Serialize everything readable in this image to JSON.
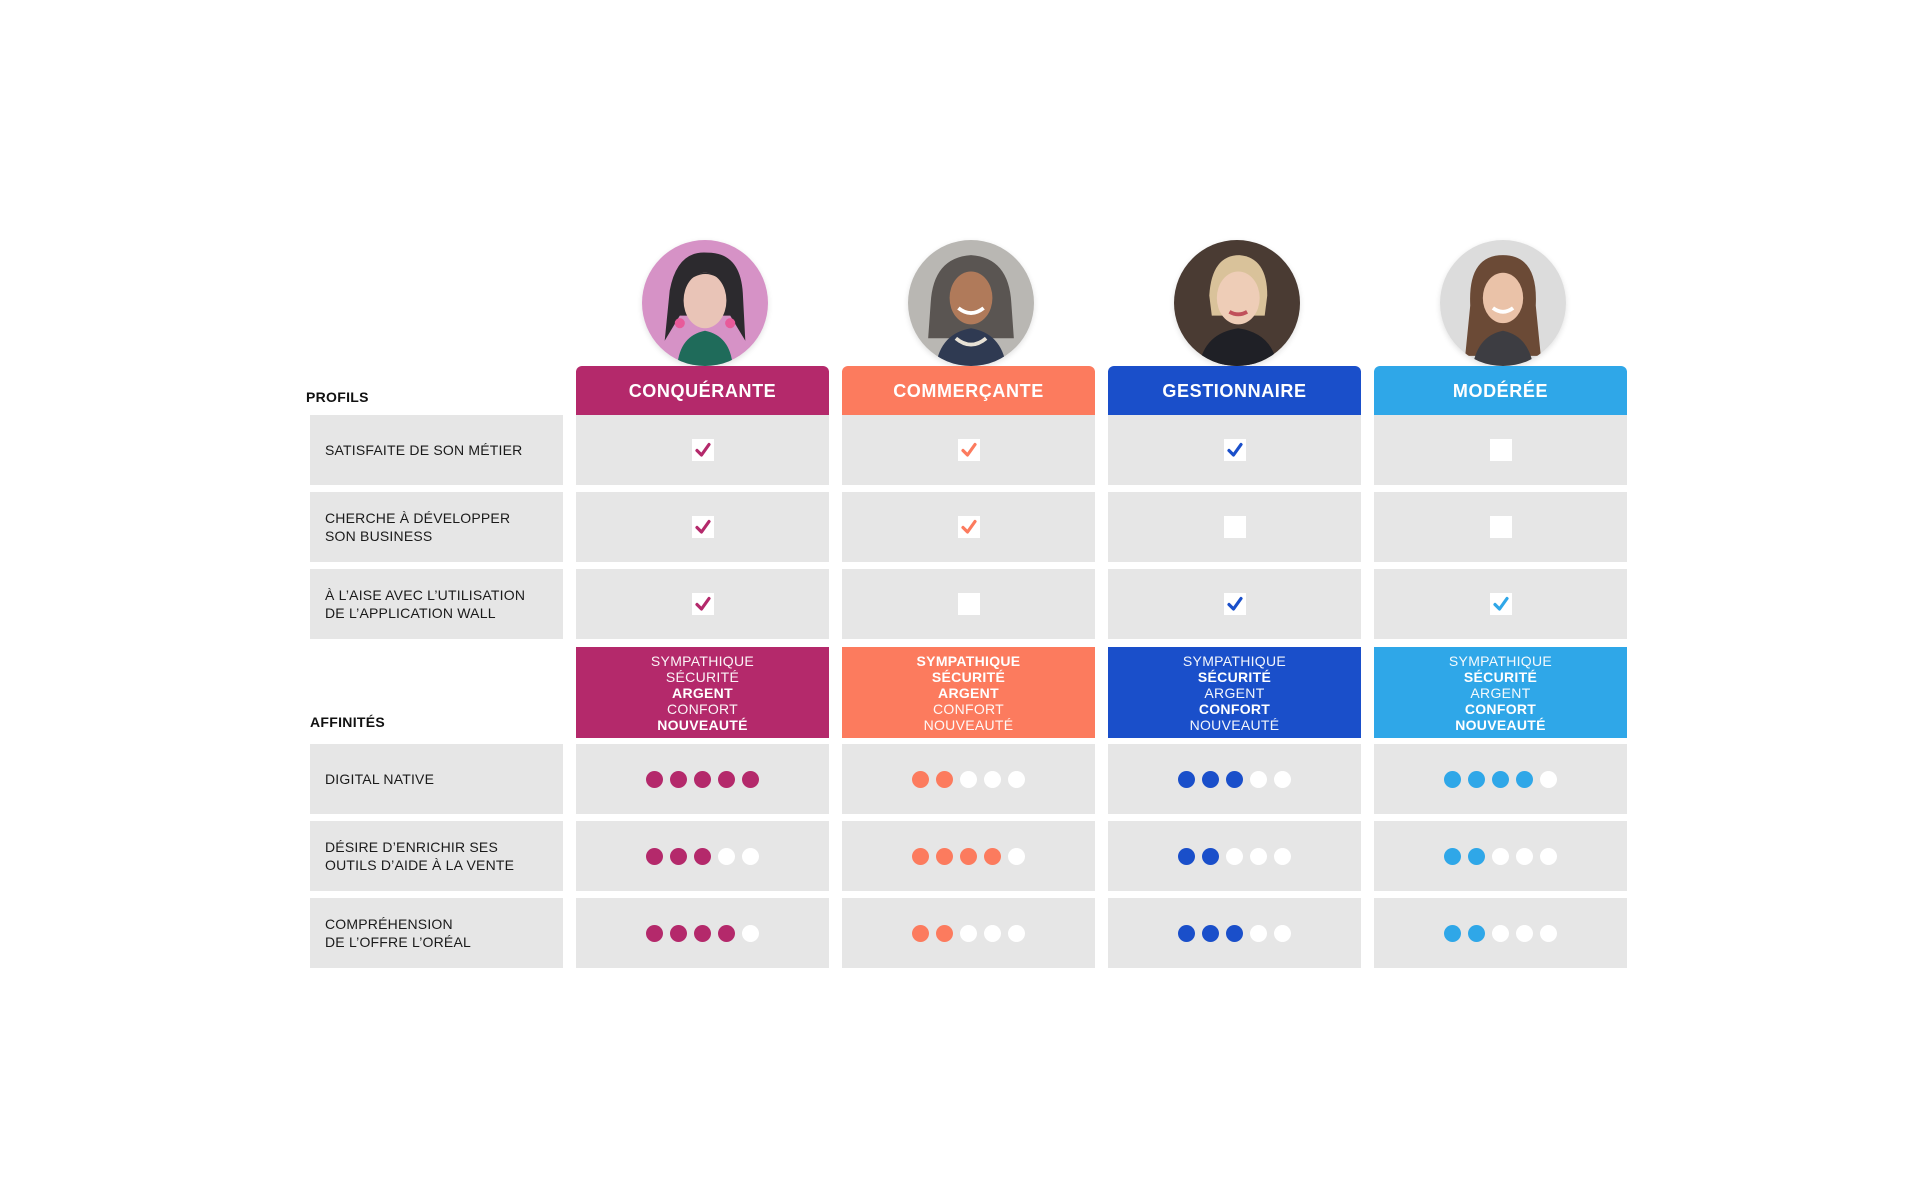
{
  "section_labels": {
    "profils": "PROFILS",
    "affinites": "AFFINITÉS"
  },
  "profiles": [
    {
      "name": "CONQUÉRANTE",
      "color": "#b4296b",
      "avatar": "woman-portrait-1"
    },
    {
      "name": "COMMERÇANTE",
      "color": "#fc7b5e",
      "avatar": "woman-portrait-2"
    },
    {
      "name": "GESTIONNAIRE",
      "color": "#1a4fca",
      "avatar": "woman-portrait-3"
    },
    {
      "name": "MODÉRÉE",
      "color": "#2fa7e8",
      "avatar": "woman-portrait-4"
    }
  ],
  "criteria": [
    {
      "label": "SATISFAITE DE SON MÉTIER",
      "checked": [
        true,
        true,
        true,
        false
      ]
    },
    {
      "label": "CHERCHE À DÉVELOPPER\nSON BUSINESS",
      "checked": [
        true,
        true,
        false,
        false
      ]
    },
    {
      "label": "À L’AISE AVEC L’UTILISATION\nDE L’APPLICATION WALL",
      "checked": [
        true,
        false,
        true,
        true
      ]
    }
  ],
  "affinity_words": [
    "SYMPATHIQUE",
    "SÉCURITÉ",
    "ARGENT",
    "CONFORT",
    "NOUVEAUTÉ"
  ],
  "affinity_bold": [
    [
      false,
      false,
      true,
      false,
      true
    ],
    [
      true,
      true,
      true,
      false,
      false
    ],
    [
      false,
      true,
      false,
      true,
      false
    ],
    [
      false,
      true,
      false,
      true,
      true
    ]
  ],
  "ratings": [
    {
      "label": "DIGITAL NATIVE",
      "scores": [
        5,
        2,
        3,
        4
      ],
      "max": 5
    },
    {
      "label": "DÉSIRE D’ENRICHIR SES\nOUTILS D’AIDE À LA VENTE",
      "scores": [
        3,
        4,
        2,
        2
      ],
      "max": 5
    },
    {
      "label": "COMPRÉHENSION\nDE L’OFFRE L’ORÉAL",
      "scores": [
        4,
        2,
        3,
        2
      ],
      "max": 5
    }
  ]
}
